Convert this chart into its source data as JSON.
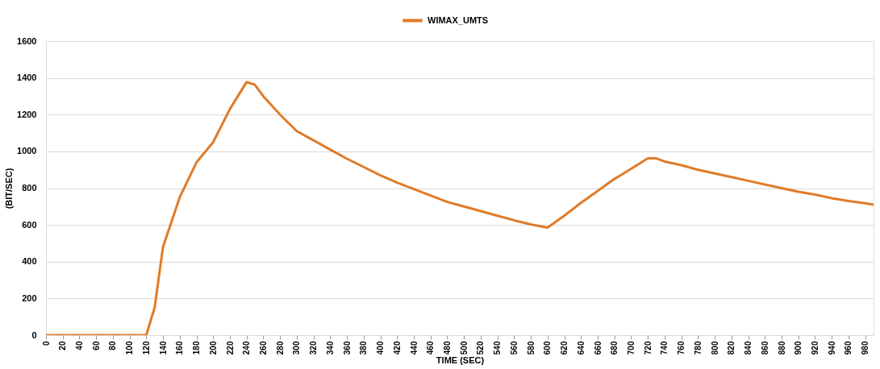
{
  "chart_data": {
    "type": "line",
    "xlabel": "TIME (SEC)",
    "ylabel": "(BIT/SEC)",
    "x": [
      0,
      20,
      40,
      60,
      80,
      100,
      120,
      130,
      140,
      160,
      180,
      200,
      220,
      240,
      250,
      260,
      280,
      300,
      320,
      340,
      360,
      380,
      400,
      420,
      440,
      460,
      480,
      500,
      520,
      540,
      560,
      580,
      600,
      620,
      640,
      660,
      680,
      700,
      720,
      730,
      740,
      760,
      780,
      800,
      820,
      840,
      860,
      880,
      900,
      920,
      940,
      960,
      980,
      990
    ],
    "series": [
      {
        "name": "WIMAX_UMTS",
        "color": "#e07b28",
        "values": [
          0,
          0,
          0,
          0,
          0,
          0,
          0,
          150,
          480,
          750,
          940,
          1050,
          1230,
          1377,
          1362,
          1300,
          1200,
          1110,
          1060,
          1010,
          960,
          915,
          870,
          830,
          795,
          760,
          725,
          700,
          675,
          650,
          625,
          603,
          585,
          650,
          720,
          785,
          850,
          905,
          962,
          962,
          945,
          925,
          900,
          880,
          860,
          840,
          820,
          800,
          780,
          765,
          745,
          730,
          718,
          710
        ]
      }
    ],
    "xlim": [
      0,
      990
    ],
    "xticks": [
      0,
      20,
      40,
      60,
      80,
      100,
      120,
      140,
      160,
      180,
      200,
      220,
      240,
      260,
      280,
      300,
      320,
      340,
      360,
      380,
      400,
      420,
      440,
      460,
      480,
      500,
      520,
      540,
      560,
      580,
      600,
      620,
      640,
      660,
      680,
      700,
      720,
      740,
      760,
      780,
      800,
      820,
      840,
      860,
      880,
      900,
      920,
      940,
      960,
      980
    ],
    "ylim": [
      0,
      1600
    ],
    "yticks": [
      0,
      200,
      400,
      600,
      800,
      1000,
      1200,
      1400,
      1600
    ],
    "grid": "y",
    "legend": "top",
    "marker": "none",
    "line_style": "solid"
  }
}
